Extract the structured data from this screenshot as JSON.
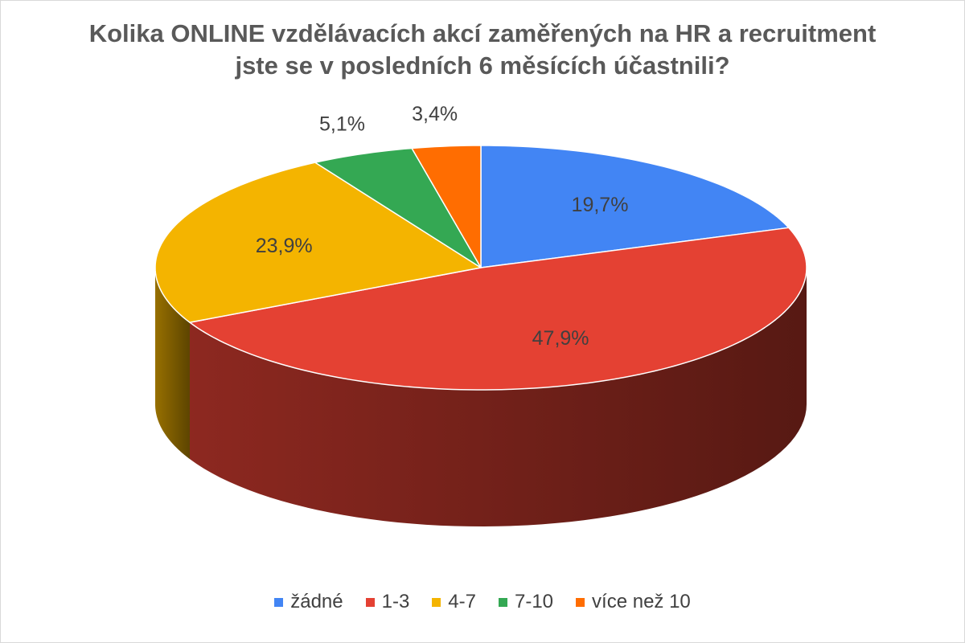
{
  "chart_data": {
    "type": "pie",
    "title_lines": [
      "Kolika ONLINE vzdělávacích akcí zaměřených na HR a recruitment",
      "jste se v posledních 6 měsících účastnili?"
    ],
    "categories": [
      "žádné",
      "1-3",
      "4-7",
      "7-10",
      "více než 10"
    ],
    "values": [
      19.7,
      47.9,
      23.9,
      5.1,
      3.4
    ],
    "labels": [
      "19,7%",
      "47,9%",
      "23,9%",
      "5,1%",
      "3,4%"
    ],
    "colors": [
      "#4285f4",
      "#e44133",
      "#f4b400",
      "#34a853",
      "#ff6d01"
    ],
    "legend_position": "bottom",
    "style": "3d-pie"
  }
}
